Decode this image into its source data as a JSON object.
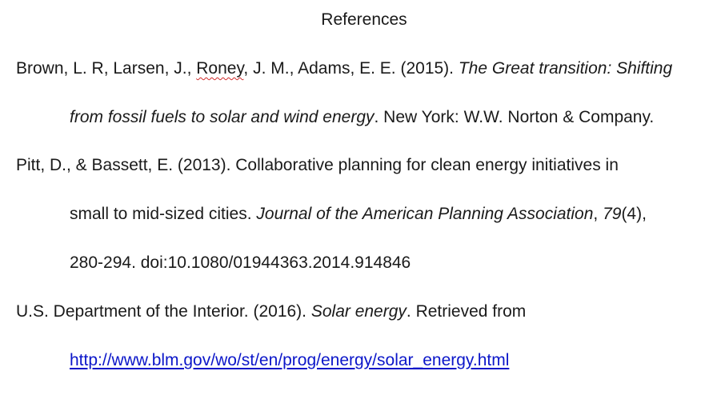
{
  "title": "References",
  "references": [
    {
      "author_pre": "Brown, L. R, Larsen, J., ",
      "author_flagged": "Roney",
      "author_post": ", J. M., Adams, E. E. (2015). ",
      "title_line1": "The Great transition: Shifting",
      "title_line2": "from fossil fuels to solar and wind energy",
      "publisher": ". New York: W.W. Norton & Company."
    },
    {
      "line1": "Pitt, D., & Bassett, E. (2013). Collaborative planning for clean energy initiatives in",
      "line2_pre": "small to mid-sized cities. ",
      "journal": "Journal of the American Planning Association",
      "comma": ", ",
      "volume": "79",
      "issue": "(4),",
      "line3": "280-294. doi:10.1080/01944363.2014.914846"
    },
    {
      "author": "U.S. Department of the Interior. (2016). ",
      "title": "Solar energy",
      "retrieved": ". Retrieved from",
      "url": "http://www.blm.gov/wo/st/en/prog/energy/solar_energy.html"
    }
  ],
  "colors": {
    "text": "#1a1a1a",
    "link": "#0b16c9",
    "spellcheck": "#d12b2b"
  }
}
